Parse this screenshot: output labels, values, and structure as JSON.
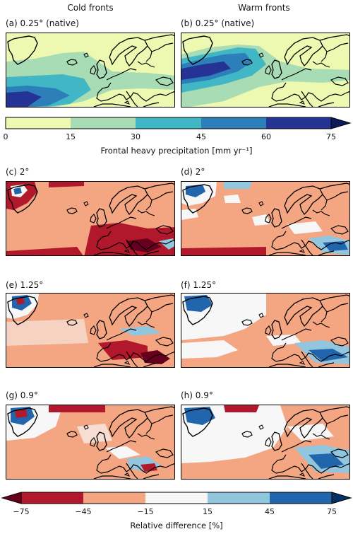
{
  "columns": {
    "left": "Cold fronts",
    "right": "Warm fronts"
  },
  "panels": {
    "a": "(a) 0.25° (native)",
    "b": "(b) 0.25° (native)",
    "c": "(c) 2°",
    "d": "(d) 2°",
    "e": "(e) 1.25°",
    "f": "(f) 1.25°",
    "g": "(g) 0.9°",
    "h": "(h) 0.9°"
  },
  "colorbar_top": {
    "label": "Frontal heavy precipitation [mm yr⁻¹]",
    "ticks": [
      "0",
      "15",
      "30",
      "45",
      "60",
      "75"
    ],
    "colors": [
      "#edf8b1",
      "#a8dcb5",
      "#41b6c4",
      "#2c7fb8",
      "#253494"
    ],
    "extend": "max"
  },
  "colorbar_bottom": {
    "label": "Relative difference [%]",
    "ticks": [
      "−75",
      "−45",
      "−15",
      "15",
      "45",
      "75"
    ],
    "colors": [
      "#b2182b",
      "#f4a582",
      "#f7f7f7",
      "#92c5de",
      "#2166ac"
    ],
    "extend": "both"
  }
}
